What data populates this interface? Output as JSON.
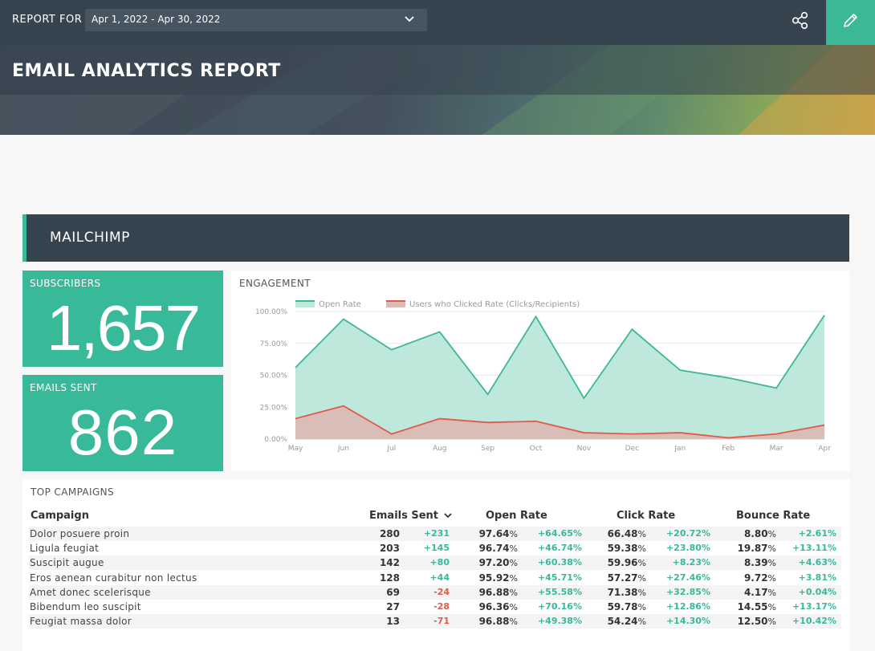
{
  "header": {
    "report_for_label": "REPORT FOR",
    "date_range": "Apr 1, 2022 - Apr 30, 2022",
    "title": "EMAIL ANALYTICS REPORT"
  },
  "section": {
    "title": "MAILCHIMP"
  },
  "kpis": {
    "subscribers": {
      "label": "SUBSCRIBERS",
      "value": "1,657"
    },
    "emails_sent": {
      "label": "EMAILS SENT",
      "value": "862"
    }
  },
  "engagement": {
    "title": "ENGAGEMENT"
  },
  "chart_data": {
    "type": "area",
    "title": "ENGAGEMENT",
    "categories": [
      "May",
      "Jun",
      "Jul",
      "Aug",
      "Sep",
      "Oct",
      "Nov",
      "Dec",
      "Jan",
      "Feb",
      "Mar",
      "Apr"
    ],
    "series": [
      {
        "name": "Open Rate",
        "color": "#3bb896",
        "values": [
          56,
          94,
          70,
          84,
          35,
          96,
          32,
          86,
          54,
          48,
          40,
          97
        ]
      },
      {
        "name": "Users who Clicked Rate (Clicks/Recipients)",
        "color": "#e05a4a",
        "values": [
          16,
          26,
          4,
          16,
          13,
          14,
          5,
          4,
          5,
          1,
          4,
          11
        ]
      }
    ],
    "yticks": [
      "100.00%",
      "75.00%",
      "50.00%",
      "25.00%",
      "0.00%"
    ],
    "ylim": [
      0,
      100
    ],
    "grid": true,
    "legend": "top-left"
  },
  "campaigns": {
    "title": "TOP CAMPAIGNS",
    "columns": [
      "Campaign",
      "Emails Sent",
      "Open Rate",
      "Click Rate",
      "Bounce Rate"
    ],
    "rows": [
      {
        "name": "Dolor posuere proin",
        "sent": "280",
        "sent_d": "+231",
        "open": "97.64",
        "open_d": "+64.65%",
        "click": "66.48",
        "click_d": "+20.72%",
        "bounce": "8.80",
        "bounce_d": "+2.61%"
      },
      {
        "name": "Ligula feugiat",
        "sent": "203",
        "sent_d": "+145",
        "open": "96.74",
        "open_d": "+46.74%",
        "click": "59.38",
        "click_d": "+23.80%",
        "bounce": "19.87",
        "bounce_d": "+13.11%"
      },
      {
        "name": "Suscipit augue",
        "sent": "142",
        "sent_d": "+80",
        "open": "97.20",
        "open_d": "+60.38%",
        "click": "59.96",
        "click_d": "+8.23%",
        "bounce": "8.39",
        "bounce_d": "+4.63%"
      },
      {
        "name": "Eros aenean curabitur non lectus",
        "sent": "128",
        "sent_d": "+44",
        "open": "95.92",
        "open_d": "+45.71%",
        "click": "57.27",
        "click_d": "+27.46%",
        "bounce": "9.72",
        "bounce_d": "+3.81%"
      },
      {
        "name": "Amet donec scelerisque",
        "sent": "69",
        "sent_d": "-24",
        "open": "96.88",
        "open_d": "+55.58%",
        "click": "71.38",
        "click_d": "+32.85%",
        "bounce": "4.17",
        "bounce_d": "+0.04%"
      },
      {
        "name": "Bibendum leo suscipit",
        "sent": "27",
        "sent_d": "-28",
        "open": "96.36",
        "open_d": "+70.16%",
        "click": "59.78",
        "click_d": "+12.86%",
        "bounce": "14.55",
        "bounce_d": "+13.17%"
      },
      {
        "name": "Feugiat massa dolor",
        "sent": "13",
        "sent_d": "-71",
        "open": "96.88",
        "open_d": "+49.38%",
        "click": "54.24",
        "click_d": "+14.30%",
        "bounce": "12.50",
        "bounce_d": "+10.42%"
      }
    ]
  }
}
